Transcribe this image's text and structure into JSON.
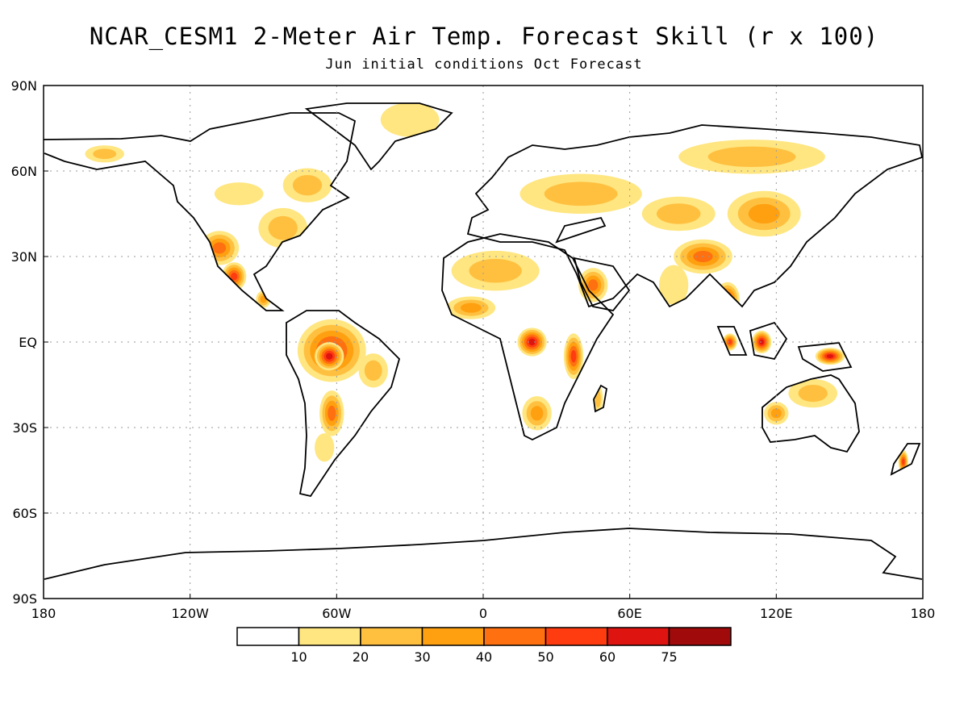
{
  "title": "NCAR_CESM1 2-Meter Air Temp. Forecast Skill (r x 100)",
  "subtitle": "Jun initial conditions  Oct Forecast",
  "map": {
    "projection": "cylindrical equidistant",
    "lon_range": [
      -180,
      180
    ],
    "lat_range": [
      -90,
      90
    ],
    "lat_labels": [
      "90N",
      "60N",
      "30N",
      "EQ",
      "30S",
      "60S",
      "90S"
    ],
    "lon_labels": [
      "180",
      "120W",
      "60W",
      "0",
      "60E",
      "120E",
      "180"
    ],
    "grid": "dotted"
  },
  "colorbar": {
    "colors": [
      "#ffffff",
      "#ffe680",
      "#ffc040",
      "#ffa010",
      "#ff7010",
      "#ff3c10",
      "#dd1410",
      "#a00a0a"
    ],
    "labels": [
      "10",
      "20",
      "30",
      "40",
      "50",
      "60",
      "75"
    ]
  },
  "regions": [
    {
      "name": "Alaska",
      "lon": -155,
      "lat": 66,
      "rx": 8,
      "ry": 3,
      "level": 2
    },
    {
      "name": "Canada-south",
      "lon": -100,
      "lat": 52,
      "rx": 10,
      "ry": 4,
      "level": 1
    },
    {
      "name": "Hudson-Labrador",
      "lon": -72,
      "lat": 55,
      "rx": 10,
      "ry": 6,
      "level": 2
    },
    {
      "name": "Greenland-east",
      "lon": -30,
      "lat": 78,
      "rx": 12,
      "ry": 6,
      "level": 1
    },
    {
      "name": "US-east",
      "lon": -82,
      "lat": 40,
      "rx": 10,
      "ry": 7,
      "level": 2
    },
    {
      "name": "US-southwest",
      "lon": -108,
      "lat": 33,
      "rx": 8,
      "ry": 6,
      "level": 4
    },
    {
      "name": "Mexico",
      "lon": -102,
      "lat": 23,
      "rx": 5,
      "ry": 5,
      "level": 5
    },
    {
      "name": "Central-America",
      "lon": -90,
      "lat": 15,
      "rx": 3,
      "ry": 3,
      "level": 3
    },
    {
      "name": "Amazon",
      "lon": -62,
      "lat": -3,
      "rx": 14,
      "ry": 11,
      "level": 5
    },
    {
      "name": "Amazon-core",
      "lon": -63,
      "lat": -5,
      "rx": 6,
      "ry": 5,
      "level": 6
    },
    {
      "name": "Brazil-east",
      "lon": -45,
      "lat": -10,
      "rx": 6,
      "ry": 6,
      "level": 2
    },
    {
      "name": "Bolivia-Paraguay",
      "lon": -62,
      "lat": -25,
      "rx": 5,
      "ry": 8,
      "level": 4
    },
    {
      "name": "Argentina",
      "lon": -65,
      "lat": -37,
      "rx": 4,
      "ry": 5,
      "level": 1
    },
    {
      "name": "Sahara",
      "lon": 5,
      "lat": 25,
      "rx": 18,
      "ry": 7,
      "level": 2
    },
    {
      "name": "Sahel-west",
      "lon": -5,
      "lat": 12,
      "rx": 10,
      "ry": 4,
      "level": 3
    },
    {
      "name": "Congo",
      "lon": 20,
      "lat": 0,
      "rx": 6,
      "ry": 5,
      "level": 6
    },
    {
      "name": "East-Africa",
      "lon": 37,
      "lat": -5,
      "rx": 4,
      "ry": 8,
      "level": 5
    },
    {
      "name": "Arabia",
      "lon": 45,
      "lat": 20,
      "rx": 6,
      "ry": 6,
      "level": 4
    },
    {
      "name": "Southern-Africa",
      "lon": 22,
      "lat": -25,
      "rx": 6,
      "ry": 6,
      "level": 3
    },
    {
      "name": "Madagascar",
      "lon": 47,
      "lat": -20,
      "rx": 2,
      "ry": 5,
      "level": 2
    },
    {
      "name": "Europe-Russia",
      "lon": 40,
      "lat": 52,
      "rx": 25,
      "ry": 7,
      "level": 2
    },
    {
      "name": "Siberia",
      "lon": 110,
      "lat": 65,
      "rx": 30,
      "ry": 6,
      "level": 2
    },
    {
      "name": "Central-Asia",
      "lon": 80,
      "lat": 45,
      "rx": 15,
      "ry": 6,
      "level": 2
    },
    {
      "name": "Tibet-China",
      "lon": 90,
      "lat": 30,
      "rx": 12,
      "ry": 6,
      "level": 4
    },
    {
      "name": "Mongolia",
      "lon": 115,
      "lat": 45,
      "rx": 15,
      "ry": 8,
      "level": 3
    },
    {
      "name": "India",
      "lon": 78,
      "lat": 20,
      "rx": 6,
      "ry": 7,
      "level": 1
    },
    {
      "name": "Indochina",
      "lon": 100,
      "lat": 15,
      "rx": 5,
      "ry": 6,
      "level": 5
    },
    {
      "name": "Borneo",
      "lon": 114,
      "lat": 0,
      "rx": 4,
      "ry": 4,
      "level": 6
    },
    {
      "name": "Sumatra",
      "lon": 101,
      "lat": 0,
      "rx": 3,
      "ry": 3,
      "level": 5
    },
    {
      "name": "New-Guinea",
      "lon": 142,
      "lat": -5,
      "rx": 6,
      "ry": 3,
      "level": 6
    },
    {
      "name": "Australia-north",
      "lon": 135,
      "lat": -18,
      "rx": 10,
      "ry": 5,
      "level": 2
    },
    {
      "name": "Australia-west",
      "lon": 120,
      "lat": -25,
      "rx": 5,
      "ry": 4,
      "level": 3
    },
    {
      "name": "New-Zealand",
      "lon": 172,
      "lat": -42,
      "rx": 2,
      "ry": 4,
      "level": 5
    }
  ]
}
